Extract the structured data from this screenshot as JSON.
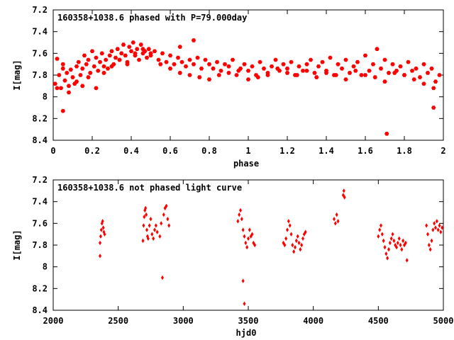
{
  "colors": {
    "points": "#ff0000",
    "axes": "#000000",
    "background": "#ffffff"
  },
  "chart_data": [
    {
      "type": "scatter",
      "title": "160358+1038.6 phased with P=79.000day",
      "xlabel": "phase",
      "ylabel": "I[mag]",
      "xlim": [
        0,
        2
      ],
      "ylim": [
        8.4,
        7.2
      ],
      "y_inverted": true,
      "xticks": [
        "0",
        "0.2",
        "0.4",
        "0.6",
        "0.8",
        "1",
        "1.2",
        "1.4",
        "1.6",
        "1.8",
        "2"
      ],
      "yticks": [
        "7.2",
        "7.4",
        "7.6",
        "7.8",
        "8",
        "8.2",
        "8.4"
      ],
      "grid": false,
      "marker": "hexagon",
      "series": [
        {
          "x": [
            0.01,
            0.02,
            0.03,
            0.04,
            0.05,
            0.06,
            0.07,
            0.08,
            0.09,
            0.1,
            0.11,
            0.12,
            0.13,
            0.14,
            0.15,
            0.16,
            0.17,
            0.18,
            0.19,
            0.2,
            0.21,
            0.22,
            0.23,
            0.24,
            0.25,
            0.26,
            0.27,
            0.28,
            0.29,
            0.3,
            0.31,
            0.32,
            0.33,
            0.34,
            0.35,
            0.36,
            0.37,
            0.38,
            0.39,
            0.4,
            0.41,
            0.42,
            0.43,
            0.44,
            0.45,
            0.46,
            0.47,
            0.48,
            0.49,
            0.5,
            0.52,
            0.54,
            0.56,
            0.58,
            0.6,
            0.62,
            0.64,
            0.66,
            0.68,
            0.7,
            0.72,
            0.74,
            0.76,
            0.78,
            0.8,
            0.82,
            0.84,
            0.86,
            0.88,
            0.9,
            0.92,
            0.94,
            0.96,
            0.98,
            1.0,
            1.02,
            1.04,
            1.06,
            1.08,
            1.1,
            1.12,
            1.14,
            1.16,
            1.18,
            1.2,
            1.22,
            1.24,
            1.26,
            1.28,
            1.3,
            1.32,
            1.34,
            1.36,
            1.38,
            1.4,
            1.42,
            1.44,
            1.46,
            1.48,
            1.5,
            1.52,
            1.54,
            1.56,
            1.58,
            1.6,
            1.62,
            1.64,
            1.66,
            1.68,
            1.7,
            1.72,
            1.74,
            1.76,
            1.78,
            1.8,
            1.82,
            1.84,
            1.86,
            1.88,
            1.9,
            1.92,
            1.94,
            1.96,
            1.98,
            0.02,
            0.05,
            0.08,
            0.12,
            0.15,
            0.18,
            0.22,
            0.26,
            0.3,
            0.34,
            0.38,
            0.42,
            0.46,
            0.5,
            0.55,
            0.6,
            0.65,
            0.7,
            0.75,
            0.8,
            0.85,
            0.9,
            0.95,
            1.0,
            1.05,
            1.1,
            1.15,
            1.2,
            1.25,
            1.3,
            1.35,
            1.4,
            1.45,
            1.5,
            1.55,
            1.6,
            1.65,
            1.7,
            1.75,
            1.8,
            1.85,
            1.9,
            1.95,
            0.05,
            0.72,
            0.65,
            1.95,
            1.71
          ],
          "y": [
            7.88,
            7.65,
            7.8,
            7.92,
            7.7,
            7.85,
            7.78,
            7.9,
            7.75,
            7.82,
            7.88,
            7.72,
            7.68,
            7.8,
            7.74,
            7.62,
            7.7,
            7.66,
            7.78,
            7.58,
            7.72,
            7.64,
            7.76,
            7.68,
            7.6,
            7.72,
            7.66,
            7.74,
            7.62,
            7.58,
            7.7,
            7.64,
            7.56,
            7.66,
            7.6,
            7.52,
            7.62,
            7.68,
            7.54,
            7.58,
            7.5,
            7.62,
            7.56,
            7.66,
            7.52,
            7.6,
            7.58,
            7.64,
            7.56,
            7.62,
            7.58,
            7.66,
            7.6,
            7.68,
            7.62,
            7.7,
            7.64,
            7.68,
            7.72,
            7.66,
            7.7,
            7.64,
            7.74,
            7.66,
            7.7,
            7.74,
            7.68,
            7.76,
            7.7,
            7.72,
            7.66,
            7.8,
            7.74,
            7.7,
            7.76,
            7.72,
            7.8,
            7.68,
            7.74,
            7.78,
            7.72,
            7.66,
            7.76,
            7.7,
            7.74,
            7.68,
            7.8,
            7.72,
            7.76,
            7.7,
            7.66,
            7.78,
            7.72,
            7.68,
            7.76,
            7.64,
            7.8,
            7.7,
            7.74,
            7.66,
            7.78,
            7.72,
            7.68,
            7.8,
            7.62,
            7.76,
            7.7,
            7.56,
            7.74,
            7.66,
            7.78,
            7.7,
            7.76,
            7.72,
            7.8,
            7.68,
            7.76,
            7.74,
            7.82,
            7.7,
            7.78,
            7.74,
            7.86,
            7.8,
            7.92,
            7.74,
            7.96,
            7.86,
            7.9,
            7.82,
            7.92,
            7.78,
            7.72,
            7.66,
            7.7,
            7.6,
            7.56,
            7.6,
            7.7,
            7.74,
            7.78,
            7.8,
            7.82,
            7.84,
            7.8,
            7.78,
            7.76,
            7.84,
            7.82,
            7.8,
            7.74,
            7.78,
            7.8,
            7.76,
            7.82,
            7.78,
            7.8,
            7.84,
            7.76,
            7.8,
            7.82,
            7.86,
            7.78,
            7.8,
            7.84,
            7.88,
            7.92,
            8.13,
            7.48,
            7.54,
            8.1,
            8.34
          ]
        }
      ]
    },
    {
      "type": "scatter",
      "title": "160358+1038.6 not phased light curve",
      "xlabel": "hjd0",
      "ylabel": "I[mag]",
      "xlim": [
        2000,
        5000
      ],
      "ylim": [
        8.4,
        7.2
      ],
      "y_inverted": true,
      "xticks": [
        "2000",
        "2500",
        "3000",
        "3500",
        "4000",
        "4500",
        "5000"
      ],
      "yticks": [
        "7.2",
        "7.4",
        "7.6",
        "7.8",
        "8",
        "8.2",
        "8.4"
      ],
      "grid": false,
      "marker": "diamond",
      "series": [
        {
          "x": [
            2360,
            2365,
            2370,
            2375,
            2380,
            2385,
            2390,
            2395,
            2690,
            2695,
            2700,
            2705,
            2710,
            2715,
            2720,
            2725,
            2730,
            2740,
            2750,
            2760,
            2770,
            2780,
            2790,
            2800,
            2820,
            2830,
            2850,
            2860,
            2870,
            2880,
            2890,
            3420,
            3430,
            3440,
            3450,
            3460,
            3470,
            3480,
            3490,
            3500,
            3510,
            3520,
            3530,
            3540,
            3550,
            3770,
            3780,
            3790,
            3800,
            3810,
            3820,
            3830,
            3840,
            3850,
            3860,
            3870,
            3880,
            3890,
            3900,
            3910,
            3920,
            3930,
            3940,
            4160,
            4170,
            4180,
            4190,
            4230,
            4235,
            4240,
            4500,
            4510,
            4520,
            4530,
            4540,
            4550,
            4560,
            4570,
            4580,
            4590,
            4600,
            4610,
            4620,
            4630,
            4640,
            4650,
            4660,
            4670,
            4680,
            4690,
            4700,
            4710,
            4870,
            4880,
            4890,
            4900,
            4910,
            4920,
            4930,
            4940,
            4950,
            4960,
            4970,
            4980,
            4990,
            2360,
            2840,
            3460,
            3470,
            4720
          ],
          "y": [
            7.78,
            7.72,
            7.66,
            7.6,
            7.58,
            7.64,
            7.68,
            7.7,
            7.76,
            7.62,
            7.54,
            7.48,
            7.46,
            7.52,
            7.66,
            7.72,
            7.74,
            7.62,
            7.56,
            7.7,
            7.74,
            7.66,
            7.62,
            7.68,
            7.72,
            7.6,
            7.52,
            7.46,
            7.44,
            7.56,
            7.62,
            7.58,
            7.52,
            7.48,
            7.56,
            7.66,
            7.72,
            7.78,
            7.82,
            7.74,
            7.66,
            7.72,
            7.7,
            7.78,
            7.8,
            7.78,
            7.8,
            7.74,
            7.66,
            7.58,
            7.62,
            7.7,
            7.8,
            7.86,
            7.82,
            7.76,
            7.72,
            7.78,
            7.84,
            7.8,
            7.74,
            7.7,
            7.68,
            7.56,
            7.6,
            7.52,
            7.58,
            7.34,
            7.3,
            7.36,
            7.72,
            7.66,
            7.62,
            7.7,
            7.76,
            7.82,
            7.88,
            7.92,
            7.84,
            7.78,
            7.74,
            7.7,
            7.76,
            7.8,
            7.82,
            7.78,
            7.74,
            7.8,
            7.84,
            7.76,
            7.8,
            7.78,
            7.62,
            7.7,
            7.8,
            7.84,
            7.76,
            7.66,
            7.6,
            7.64,
            7.58,
            7.66,
            7.62,
            7.68,
            7.64,
            7.9,
            8.1,
            8.13,
            8.34,
            7.94
          ]
        }
      ]
    }
  ]
}
